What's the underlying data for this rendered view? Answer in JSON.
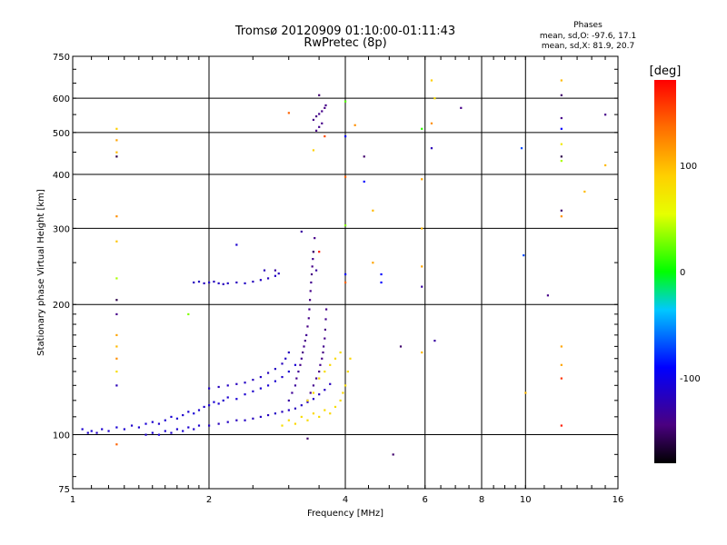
{
  "title": "Tromsø 20120909 01:10:00-01:11:43",
  "subtitle": "RwPretec (8p)",
  "phase_box": {
    "label": "Phases",
    "line_o": "mean, sd,O: -97.6, 17.1",
    "line_x": "mean, sd,X:  81.9, 20.7"
  },
  "chart_data": {
    "type": "scatter",
    "title": "Tromsø 20120909 01:10:00-01:11:43",
    "subtitle": "RwPretec (8p)",
    "xlabel": "Frequency [MHz]",
    "ylabel": "Stationary phase Virtual Height [km]",
    "xscale": "log",
    "yscale": "log",
    "xlim": [
      1,
      16
    ],
    "ylim": [
      75,
      750
    ],
    "xticks": [
      1,
      2,
      4,
      6,
      8,
      10,
      16
    ],
    "xtick_labels": [
      "1",
      "2",
      "4",
      "6",
      "8",
      "10",
      "16"
    ],
    "yticks": [
      75,
      100,
      200,
      300,
      400,
      500,
      600,
      750
    ],
    "ytick_labels": [
      "75",
      "100",
      "200",
      "300",
      "400",
      "500",
      "600",
      "750"
    ],
    "grid": true,
    "colorbar": {
      "label": "[deg]",
      "range": [
        -180,
        180
      ],
      "ticks": [
        -100,
        0,
        100
      ],
      "tick_labels": [
        "-100",
        "0",
        "100"
      ],
      "colormap": "rainbow"
    },
    "series": [
      {
        "points": [
          [
            1.05,
            103,
            -110
          ],
          [
            1.08,
            101,
            -112
          ],
          [
            1.1,
            102,
            -108
          ],
          [
            1.13,
            101,
            -115
          ],
          [
            1.16,
            103,
            -110
          ],
          [
            1.2,
            102,
            -112
          ],
          [
            1.25,
            104,
            -108
          ],
          [
            1.3,
            103,
            -110
          ],
          [
            1.35,
            105,
            -112
          ],
          [
            1.4,
            104,
            -110
          ],
          [
            1.45,
            106,
            -108
          ],
          [
            1.5,
            107,
            -110
          ],
          [
            1.55,
            106,
            -112
          ],
          [
            1.6,
            108,
            -110
          ],
          [
            1.65,
            110,
            -108
          ],
          [
            1.7,
            109,
            -110
          ],
          [
            1.75,
            111,
            -112
          ],
          [
            1.8,
            113,
            -110
          ],
          [
            1.85,
            112,
            -108
          ],
          [
            1.9,
            114,
            -110
          ],
          [
            1.95,
            116,
            -112
          ],
          [
            2.0,
            117,
            -110
          ],
          [
            2.05,
            119,
            -108
          ],
          [
            2.1,
            118,
            -110
          ],
          [
            2.15,
            120,
            -112
          ],
          [
            2.2,
            122,
            -110
          ],
          [
            2.3,
            121,
            -108
          ],
          [
            2.4,
            124,
            -110
          ],
          [
            2.5,
            126,
            -112
          ],
          [
            2.6,
            128,
            -110
          ],
          [
            2.7,
            130,
            -108
          ],
          [
            2.8,
            133,
            -110
          ],
          [
            2.9,
            136,
            -112
          ],
          [
            3.0,
            140,
            -110
          ],
          [
            3.1,
            145,
            -108
          ],
          [
            1.45,
            100,
            -112
          ],
          [
            1.5,
            101,
            -110
          ],
          [
            1.55,
            100,
            -108
          ],
          [
            1.6,
            102,
            -110
          ],
          [
            1.65,
            101,
            -112
          ],
          [
            1.7,
            103,
            -110
          ],
          [
            1.75,
            102,
            -108
          ],
          [
            1.8,
            104,
            -110
          ],
          [
            1.85,
            103,
            -112
          ],
          [
            1.9,
            105,
            -110
          ]
        ]
      },
      {
        "points": [
          [
            2.0,
            105,
            -115
          ],
          [
            2.1,
            106,
            -118
          ],
          [
            2.2,
            107,
            -115
          ],
          [
            2.3,
            108,
            -118
          ],
          [
            2.4,
            108,
            -115
          ],
          [
            2.5,
            109,
            -118
          ],
          [
            2.6,
            110,
            -115
          ],
          [
            2.7,
            111,
            -118
          ],
          [
            2.8,
            112,
            -115
          ],
          [
            2.9,
            113,
            -118
          ],
          [
            3.0,
            114,
            -115
          ],
          [
            3.1,
            115,
            -118
          ],
          [
            3.2,
            117,
            -115
          ],
          [
            3.3,
            119,
            -118
          ],
          [
            3.4,
            121,
            -115
          ],
          [
            3.5,
            124,
            -118
          ],
          [
            3.6,
            127,
            -115
          ],
          [
            3.7,
            131,
            -118
          ]
        ]
      },
      {
        "points": [
          [
            2.0,
            128,
            -115
          ],
          [
            2.1,
            129,
            -118
          ],
          [
            2.2,
            130,
            -115
          ],
          [
            2.3,
            131,
            -118
          ],
          [
            2.4,
            132,
            -115
          ],
          [
            2.5,
            134,
            -118
          ],
          [
            2.6,
            136,
            -115
          ],
          [
            2.7,
            139,
            -118
          ],
          [
            2.8,
            142,
            -115
          ],
          [
            2.9,
            146,
            -118
          ],
          [
            2.95,
            150,
            -115
          ],
          [
            3.0,
            155,
            -118
          ]
        ]
      },
      {
        "points": [
          [
            1.85,
            225,
            -118
          ],
          [
            1.9,
            226,
            -115
          ],
          [
            1.95,
            224,
            -118
          ],
          [
            2.0,
            225,
            -115
          ],
          [
            2.05,
            226,
            -118
          ],
          [
            2.1,
            224,
            -115
          ],
          [
            2.15,
            223,
            -118
          ],
          [
            2.2,
            224,
            -115
          ],
          [
            2.3,
            225,
            -118
          ],
          [
            2.4,
            224,
            -115
          ],
          [
            2.5,
            226,
            -118
          ],
          [
            2.6,
            228,
            -115
          ],
          [
            2.7,
            230,
            -118
          ],
          [
            2.8,
            233,
            -115
          ],
          [
            2.85,
            236,
            -118
          ]
        ]
      },
      {
        "points": [
          [
            3.0,
            120,
            -130
          ],
          [
            3.05,
            125,
            -135
          ],
          [
            3.1,
            130,
            -132
          ],
          [
            3.12,
            135,
            -138
          ],
          [
            3.15,
            140,
            -135
          ],
          [
            3.18,
            145,
            -140
          ],
          [
            3.2,
            150,
            -136
          ],
          [
            3.22,
            155,
            -142
          ],
          [
            3.24,
            160,
            -138
          ],
          [
            3.26,
            165,
            -140
          ],
          [
            3.28,
            170,
            -136
          ],
          [
            3.3,
            178,
            -142
          ],
          [
            3.32,
            186,
            -140
          ],
          [
            3.33,
            195,
            -138
          ],
          [
            3.34,
            205,
            -142
          ],
          [
            3.35,
            215,
            -140
          ],
          [
            3.36,
            225,
            -138
          ],
          [
            3.37,
            235,
            -142
          ],
          [
            3.38,
            245,
            -140
          ],
          [
            3.39,
            255,
            -138
          ],
          [
            3.4,
            265,
            -142
          ],
          [
            3.42,
            285,
            -140
          ]
        ]
      },
      {
        "points": [
          [
            3.3,
            120,
            -140
          ],
          [
            3.35,
            125,
            -142
          ],
          [
            3.4,
            130,
            -138
          ],
          [
            3.45,
            135,
            -140
          ],
          [
            3.5,
            140,
            -142
          ],
          [
            3.52,
            145,
            -138
          ],
          [
            3.55,
            150,
            -140
          ],
          [
            3.57,
            155,
            -142
          ],
          [
            3.58,
            160,
            -138
          ],
          [
            3.6,
            167,
            -140
          ],
          [
            3.61,
            175,
            -142
          ],
          [
            3.62,
            185,
            -138
          ],
          [
            3.63,
            195,
            -140
          ]
        ]
      },
      {
        "points": [
          [
            3.4,
            535,
            -140
          ],
          [
            3.45,
            545,
            -142
          ],
          [
            3.5,
            552,
            -138
          ],
          [
            3.55,
            560,
            -140
          ],
          [
            3.6,
            570,
            -142
          ],
          [
            3.62,
            578,
            -140
          ],
          [
            3.5,
            515,
            -138
          ],
          [
            3.55,
            525,
            -140
          ],
          [
            3.45,
            505,
            -142
          ],
          [
            3.5,
            610,
            -150
          ]
        ]
      },
      {
        "points": [
          [
            2.9,
            105,
            80
          ],
          [
            3.0,
            108,
            82
          ],
          [
            3.1,
            106,
            85
          ],
          [
            3.2,
            110,
            80
          ],
          [
            3.3,
            108,
            82
          ],
          [
            3.4,
            112,
            85
          ],
          [
            3.5,
            110,
            80
          ],
          [
            3.6,
            114,
            82
          ],
          [
            3.7,
            112,
            85
          ],
          [
            3.8,
            116,
            80
          ],
          [
            3.9,
            120,
            82
          ],
          [
            3.95,
            125,
            85
          ],
          [
            4.0,
            130,
            80
          ],
          [
            4.05,
            140,
            82
          ],
          [
            4.1,
            150,
            85
          ],
          [
            3.5,
            135,
            82
          ],
          [
            3.6,
            140,
            80
          ],
          [
            3.7,
            145,
            85
          ],
          [
            3.8,
            150,
            82
          ],
          [
            3.9,
            155,
            80
          ],
          [
            3.4,
            125,
            85
          ],
          [
            3.3,
            120,
            82
          ]
        ]
      },
      {
        "points": [
          [
            1.25,
            450,
            100
          ],
          [
            1.25,
            480,
            110
          ],
          [
            1.25,
            510,
            90
          ],
          [
            1.25,
            440,
            -160
          ],
          [
            1.25,
            320,
            120
          ],
          [
            1.25,
            280,
            95
          ],
          [
            1.25,
            230,
            40
          ],
          [
            1.25,
            205,
            -160
          ],
          [
            1.25,
            190,
            -140
          ],
          [
            1.25,
            170,
            110
          ],
          [
            1.25,
            160,
            100
          ],
          [
            1.25,
            150,
            120
          ],
          [
            1.25,
            140,
            80
          ],
          [
            1.25,
            130,
            -120
          ],
          [
            1.25,
            95,
            140
          ],
          [
            1.8,
            190,
            30
          ],
          [
            2.3,
            275,
            -110
          ],
          [
            2.65,
            240,
            -120
          ],
          [
            2.8,
            240,
            -130
          ],
          [
            3.2,
            295,
            -130
          ],
          [
            3.3,
            98,
            -150
          ],
          [
            3.4,
            265,
            -150
          ],
          [
            3.5,
            265,
            170
          ],
          [
            3.45,
            240,
            -130
          ],
          [
            3.0,
            555,
            140
          ],
          [
            3.6,
            490,
            150
          ],
          [
            3.4,
            455,
            90
          ],
          [
            4.0,
            590,
            20
          ],
          [
            4.0,
            490,
            -90
          ],
          [
            4.0,
            395,
            140
          ],
          [
            4.0,
            305,
            30
          ],
          [
            4.0,
            225,
            140
          ],
          [
            4.0,
            235,
            -90
          ],
          [
            4.2,
            520,
            120
          ],
          [
            4.4,
            440,
            -150
          ],
          [
            4.4,
            385,
            -90
          ],
          [
            4.6,
            330,
            100
          ],
          [
            4.6,
            250,
            110
          ],
          [
            4.8,
            235,
            -90
          ],
          [
            4.8,
            225,
            -90
          ],
          [
            5.1,
            90,
            -150
          ],
          [
            5.3,
            160,
            -150
          ],
          [
            5.9,
            510,
            10
          ],
          [
            5.9,
            390,
            110
          ],
          [
            5.9,
            300,
            100
          ],
          [
            5.9,
            245,
            110
          ],
          [
            5.9,
            220,
            -130
          ],
          [
            5.9,
            155,
            100
          ],
          [
            6.2,
            660,
            90
          ],
          [
            6.2,
            525,
            120
          ],
          [
            6.2,
            460,
            -120
          ],
          [
            6.3,
            600,
            80
          ],
          [
            6.3,
            165,
            -130
          ],
          [
            7.2,
            570,
            -140
          ],
          [
            9.8,
            460,
            -70
          ],
          [
            9.9,
            260,
            -70
          ],
          [
            10.0,
            125,
            100
          ],
          [
            11.2,
            210,
            -140
          ],
          [
            12.0,
            660,
            100
          ],
          [
            12.0,
            610,
            -150
          ],
          [
            12.0,
            540,
            -140
          ],
          [
            12.0,
            510,
            -90
          ],
          [
            12.0,
            470,
            70
          ],
          [
            12.0,
            440,
            -160
          ],
          [
            12.0,
            430,
            40
          ],
          [
            12.0,
            330,
            -150
          ],
          [
            12.0,
            320,
            120
          ],
          [
            12.0,
            160,
            110
          ],
          [
            12.0,
            145,
            110
          ],
          [
            12.0,
            135,
            160
          ],
          [
            12.0,
            105,
            170
          ],
          [
            13.5,
            365,
            100
          ],
          [
            15.0,
            550,
            -140
          ],
          [
            15.0,
            420,
            100
          ]
        ]
      }
    ]
  }
}
